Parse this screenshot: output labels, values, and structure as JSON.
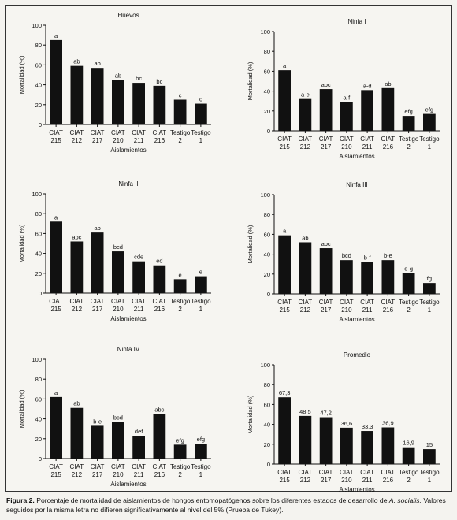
{
  "chart_data": [
    {
      "type": "bar",
      "title": "Huevos",
      "xlabel": "Aislamientos",
      "ylabel": "Mortalidad (%)",
      "ylim": [
        0,
        100
      ],
      "yticks": [
        "0",
        "20",
        "40",
        "60",
        "80",
        "100"
      ],
      "categories": [
        [
          "CIAT",
          "215"
        ],
        [
          "CIAT",
          "212"
        ],
        [
          "CIAT",
          "217"
        ],
        [
          "CIAT",
          "210"
        ],
        [
          "CIAT",
          "211"
        ],
        [
          "CIAT",
          "216"
        ],
        [
          "Testigo",
          "2"
        ],
        [
          "Testigo",
          "1"
        ]
      ],
      "values": [
        85,
        59,
        57,
        45,
        42,
        39,
        25,
        21
      ],
      "labels": [
        "a",
        "ab",
        "ab",
        "ab",
        "bc",
        "bc",
        "c",
        "c"
      ]
    },
    {
      "type": "bar",
      "title": "Ninfa I",
      "xlabel": "Aislamientos",
      "ylabel": "Mortalidad (%)",
      "ylim": [
        0,
        100
      ],
      "yticks": [
        "0",
        "20",
        "40",
        "60",
        "80",
        "100"
      ],
      "categories": [
        [
          "CIAT",
          "215"
        ],
        [
          "CIAT",
          "212"
        ],
        [
          "CIAT",
          "217"
        ],
        [
          "CIAT",
          "210"
        ],
        [
          "CIAT",
          "211"
        ],
        [
          "CIAT",
          "216"
        ],
        [
          "Testigo",
          "2"
        ],
        [
          "Testigo",
          "1"
        ]
      ],
      "values": [
        61,
        32,
        42,
        29,
        41,
        43,
        15,
        17
      ],
      "labels": [
        "a",
        "a-e",
        "abc",
        "a-f",
        "a-d",
        "ab",
        "efg",
        "efg"
      ]
    },
    {
      "type": "bar",
      "title": "Ninfa II",
      "xlabel": "Aislamientos",
      "ylabel": "Mortalidad (%)",
      "ylim": [
        0,
        100
      ],
      "yticks": [
        "0",
        "20",
        "40",
        "60",
        "80",
        "100"
      ],
      "categories": [
        [
          "CIAT",
          "215"
        ],
        [
          "CIAT",
          "212"
        ],
        [
          "CIAT",
          "217"
        ],
        [
          "CIAT",
          "210"
        ],
        [
          "CIAT",
          "211"
        ],
        [
          "CIAT",
          "216"
        ],
        [
          "Testigo",
          "2"
        ],
        [
          "Testigo",
          "1"
        ]
      ],
      "values": [
        72,
        52,
        61,
        42,
        32,
        28,
        14,
        17
      ],
      "labels": [
        "a",
        "abc",
        "ab",
        "bcd",
        "cde",
        "ed",
        "e",
        "e"
      ]
    },
    {
      "type": "bar",
      "title": "Ninfa III",
      "xlabel": "Aislamientos",
      "ylabel": "Mortalidad (%)",
      "ylim": [
        0,
        100
      ],
      "yticks": [
        "0",
        "20",
        "40",
        "60",
        "80",
        "100"
      ],
      "categories": [
        [
          "CIAT",
          "215"
        ],
        [
          "CIAT",
          "212"
        ],
        [
          "CIAT",
          "217"
        ],
        [
          "CIAT",
          "210"
        ],
        [
          "CIAT",
          "211"
        ],
        [
          "CIAT",
          "216"
        ],
        [
          "Testigo",
          "2"
        ],
        [
          "Testigo",
          "1"
        ]
      ],
      "values": [
        59,
        52,
        46,
        34,
        32,
        34,
        21,
        11
      ],
      "labels": [
        "a",
        "ab",
        "abc",
        "bcd",
        "b-f",
        "b-e",
        "d-g",
        "fg"
      ]
    },
    {
      "type": "bar",
      "title": "Ninfa IV",
      "xlabel": "Aislamientos",
      "ylabel": "Mortalidad (%)",
      "ylim": [
        0,
        100
      ],
      "yticks": [
        "0",
        "20",
        "40",
        "60",
        "80",
        "100"
      ],
      "categories": [
        [
          "CIAT",
          "215"
        ],
        [
          "CIAT",
          "212"
        ],
        [
          "CIAT",
          "217"
        ],
        [
          "CIAT",
          "210"
        ],
        [
          "CIAT",
          "211"
        ],
        [
          "CIAT",
          "216"
        ],
        [
          "Testigo",
          "2"
        ],
        [
          "Testigo",
          "1"
        ]
      ],
      "values": [
        62,
        51,
        33,
        37,
        23,
        45,
        14,
        15
      ],
      "labels": [
        "a",
        "ab",
        "b-e",
        "bcd",
        "def",
        "abc",
        "efg",
        "efg"
      ]
    },
    {
      "type": "bar",
      "title": "Promedio",
      "xlabel": "Aislamientos",
      "ylabel": "Mortalidad (%)",
      "ylim": [
        0,
        100
      ],
      "yticks": [
        "0",
        "20",
        "40",
        "60",
        "80",
        "100"
      ],
      "categories": [
        [
          "CIAT",
          "215"
        ],
        [
          "CIAT",
          "212"
        ],
        [
          "CIAT",
          "217"
        ],
        [
          "CIAT",
          "210"
        ],
        [
          "CIAT",
          "211"
        ],
        [
          "CIAT",
          "216"
        ],
        [
          "Testigo",
          "2"
        ],
        [
          "Testigo",
          "1"
        ]
      ],
      "values": [
        67.3,
        48.5,
        47.2,
        36.6,
        33.3,
        36.9,
        16.9,
        15
      ],
      "labels": [
        "67,3",
        "48,5",
        "47,2",
        "36,6",
        "33,3",
        "36,9",
        "16,9",
        "15"
      ]
    }
  ],
  "caption": {
    "figure_label": "Figura 2.",
    "text_part1": "Porcentaje de mortalidad de aislamientos de hongos entomopatógenos sobre los diferentes estados de desarrollo de ",
    "species": "A. socialis.",
    "text_part2": "Valores seguidos por la misma letra no difieren significativamente al nivel del 5% (Prueba de Tukey)."
  }
}
